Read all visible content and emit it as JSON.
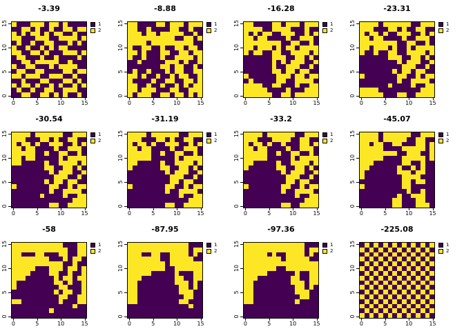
{
  "figure": {
    "background": "#ffffff"
  },
  "palette": {
    "1": "#440154",
    "2": "#FDE725"
  },
  "legend": {
    "entries": [
      {
        "label": "1",
        "color": "#440154"
      },
      {
        "label": "2",
        "color": "#FDE725"
      }
    ]
  },
  "axis": {
    "tick_values": [
      0,
      5,
      10,
      15
    ],
    "x_ticks": [
      "0",
      "5",
      "10",
      "15"
    ],
    "y_ticks": [
      "0",
      "5",
      "10",
      "15"
    ],
    "range": [
      0,
      16
    ],
    "y_labels_rotated": true
  },
  "chart_data": [
    {
      "type": "heatmap",
      "title": "-3.39",
      "legend": [
        "1",
        "2"
      ],
      "xlim": [
        0,
        16
      ],
      "ylim": [
        0,
        16
      ],
      "grid": [
        "2111222122121111",
        "1122121121122122",
        "2121221212211211",
        "2211122211222212",
        "1211211221112121",
        "2112112121221111",
        "2211221211122212",
        "1221112112111121",
        "1122122222112111",
        "2112211121222211",
        "1221122111122122",
        "2212221122211211",
        "1121112211122121",
        "2122121121211212",
        "1211211221122211",
        "1122112212121121"
      ]
    },
    {
      "type": "heatmap",
      "title": "-8.88",
      "legend": [
        "1",
        "2"
      ],
      "xlim": [
        0,
        16
      ],
      "ylim": [
        0,
        16
      ],
      "grid": [
        "2211112212221222",
        "2211211112211211",
        "2221221222221121",
        "2222222222112212",
        "2222122222222211",
        "2112211211221221",
        "2212111221122122",
        "2112111211222212",
        "1121111122212112",
        "1111111221221121",
        "1211211121221122",
        "2212112112122112",
        "2111121122112212",
        "2211211211212122",
        "2212221112211222",
        "2122211221221212"
      ]
    },
    {
      "type": "heatmap",
      "title": "-16.28",
      "legend": [
        "1",
        "2"
      ],
      "xlim": [
        0,
        16
      ],
      "ylim": [
        0,
        16
      ],
      "grid": [
        "2211112212221222",
        "2222112222111211",
        "2121221122211212",
        "2212211112112221",
        "2222222211221121",
        "2212221212212222",
        "2122112211222212",
        "1111112221122121",
        "1111112121222112",
        "1111112112221121",
        "1111112212212211",
        "2111111222122122",
        "1211111221122221",
        "2222112211121122",
        "2222211112111222",
        "2222221122122222"
      ]
    },
    {
      "type": "heatmap",
      "title": "-23.31",
      "legend": [
        "1",
        "2"
      ],
      "xlim": [
        0,
        16
      ],
      "ylim": [
        0,
        16
      ],
      "grid": [
        "2222122222211222",
        "2221112212112211",
        "2122121122211212",
        "2212211112112221",
        "2222222211221121",
        "2212221211212222",
        "2112112211222212",
        "1111112221122121",
        "1111111121222112",
        "1111111112221121",
        "1111111212212211",
        "2111111122112122",
        "1111111121122221",
        "1111112111121122",
        "2222111111111222",
        "2222211122112222"
      ]
    },
    {
      "type": "heatmap",
      "title": "-30.54",
      "legend": [
        "1",
        "2"
      ],
      "xlim": [
        0,
        16
      ],
      "ylim": [
        0,
        16
      ],
      "grid": [
        "2222122222211222",
        "2221112212112211",
        "2122121122211212",
        "2212211112112221",
        "2222211211221121",
        "2212211111212222",
        "2211111211222212",
        "1111111221122121",
        "1111111121222112",
        "1111111112221121",
        "1111111212212211",
        "2111111122112122",
        "1111111121122221",
        "1111112111121122",
        "1111111111111222",
        "1111111122112222"
      ]
    },
    {
      "type": "heatmap",
      "title": "-31.19",
      "legend": [
        "1",
        "2"
      ],
      "xlim": [
        0,
        16
      ],
      "ylim": [
        0,
        16
      ],
      "grid": [
        "2222122222211222",
        "2221112212112211",
        "2122121122211212",
        "2212211112112221",
        "2222211211221121",
        "2222211111212222",
        "2211111211222212",
        "2111111221122121",
        "1111111121222112",
        "1111111112221121",
        "1111111112212211",
        "2111111122112122",
        "1111111121122221",
        "1111111111121122",
        "1111111111111222",
        "1111111122112222"
      ]
    },
    {
      "type": "heatmap",
      "title": "-33.2",
      "legend": [
        "1",
        "2"
      ],
      "xlim": [
        0,
        16
      ],
      "ylim": [
        0,
        16
      ],
      "grid": [
        "2222122222211222",
        "2221112222112211",
        "2122121121112212",
        "2212211112112221",
        "2222211211221121",
        "2222211111212222",
        "2211111211222212",
        "2111111221122121",
        "1111111121222112",
        "1111111112221121",
        "1111111112212211",
        "2111111122112122",
        "1111111121122221",
        "1111111111121122",
        "1111111111111222",
        "1111111122112222"
      ]
    },
    {
      "type": "heatmap",
      "title": "-45.07",
      "legend": [
        "1",
        "2"
      ],
      "xlim": [
        0,
        16
      ],
      "ylim": [
        0,
        16
      ],
      "grid": [
        "2222122222211222",
        "2222122222112211",
        "2212211221112212",
        "2222211112222212",
        "2222222211222112",
        "2222211112222212",
        "2221111112211211",
        "2211111121121211",
        "2111111122212211",
        "2111111112222111",
        "1111111112212211",
        "2111111112211111",
        "1111111111211211",
        "1111111121122211",
        "1111111221112211",
        "1111111221112221"
      ]
    },
    {
      "type": "heatmap",
      "title": "-58",
      "legend": [
        "1",
        "2"
      ],
      "xlim": [
        0,
        16
      ],
      "ylim": [
        0,
        16
      ],
      "grid": [
        "2222222222211122",
        "2222222222221122",
        "2211122111221122",
        "2222222211121221",
        "2222222222211211",
        "2222211122212212",
        "2222111122112112",
        "2221111112122122",
        "2111111112212112",
        "2111111111221112",
        "1111111112122112",
        "1111111111221122",
        "2211111111211122",
        "1111111111111211",
        "1111111121111111",
        "1111111111111111"
      ]
    },
    {
      "type": "heatmap",
      "title": "-87.95",
      "legend": [
        "1",
        "2"
      ],
      "xlim": [
        0,
        16
      ],
      "ylim": [
        0,
        16
      ],
      "grid": [
        "2222222222222111",
        "2222222222222122",
        "2221122112222121",
        "2222222112222211",
        "2222222212222222",
        "2222222211222222",
        "2222211111211122",
        "2221111111221122",
        "2211111111222121",
        "2211111111122121",
        "2211111111122211",
        "2211111111112211",
        "2211111111122111",
        "1111111111111211",
        "1111111111111111",
        "1111111111111111"
      ]
    },
    {
      "type": "heatmap",
      "title": "-97.36",
      "legend": [
        "1",
        "2"
      ],
      "xlim": [
        0,
        16
      ],
      "ylim": [
        0,
        16
      ],
      "grid": [
        "2222222222222111",
        "2222222222222122",
        "2222212112222121",
        "2222222212222211",
        "2222222222222222",
        "2222222112222222",
        "2222211111121122",
        "2221111111221122",
        "2211111111222122",
        "2211111111122121",
        "2211111111122211",
        "2211111111112211",
        "2211111111121111",
        "1111111111111111",
        "1111111111111111",
        "1111111111111111"
      ]
    },
    {
      "type": "heatmap",
      "title": "-225.08",
      "legend": [
        "1",
        "2"
      ],
      "xlim": [
        0,
        16
      ],
      "ylim": [
        0,
        16
      ],
      "grid": [
        "1212121212121212",
        "2121212121212121",
        "1212121212121212",
        "2121212121212121",
        "1212121212121212",
        "2121212121212121",
        "1212121212121212",
        "2121212121212121",
        "1212121212121212",
        "2121212121212121",
        "1212121212121212",
        "2121212121212121",
        "1212121212121212",
        "2121212121212121",
        "1212121212121212",
        "2121212121212121"
      ]
    }
  ]
}
